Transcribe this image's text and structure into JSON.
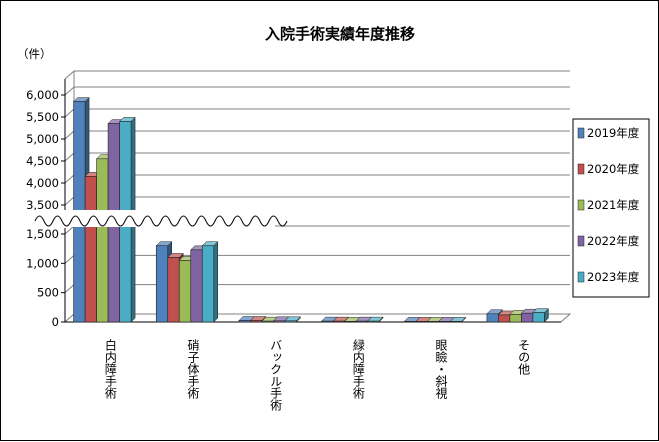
{
  "chart_data": {
    "type": "bar",
    "title": "入院手術実績年度推移",
    "ylabel": "（件）",
    "categories": [
      "白内障手術",
      "硝子体手術",
      "バックル手術",
      "緑内障手術",
      "眼瞼・斜視",
      "その他"
    ],
    "series": [
      {
        "name": "2019年度",
        "color": "#4f81bd",
        "values": [
          5850,
          1300,
          25,
          15,
          10,
          140
        ]
      },
      {
        "name": "2020年度",
        "color": "#c0504d",
        "values": [
          4150,
          1100,
          25,
          15,
          10,
          120
        ]
      },
      {
        "name": "2021年度",
        "color": "#9bbb59",
        "values": [
          4550,
          1050,
          15,
          10,
          10,
          130
        ]
      },
      {
        "name": "2022年度",
        "color": "#8064a2",
        "values": [
          5350,
          1230,
          20,
          15,
          10,
          150
        ]
      },
      {
        "name": "2023年度",
        "color": "#4bacc6",
        "values": [
          5400,
          1300,
          20,
          15,
          10,
          160
        ]
      }
    ],
    "y_axis_broken": true,
    "y_ticks_lower": [
      "0",
      "500",
      "1,000",
      "1,500"
    ],
    "y_ticks_upper": [
      "3,500",
      "4,000",
      "4,500",
      "5,000",
      "5,500",
      "6,000"
    ],
    "ylim_lower": [
      0,
      1500
    ],
    "ylim_upper": [
      3500,
      6000
    ],
    "grid": true,
    "legend_position": "right"
  }
}
